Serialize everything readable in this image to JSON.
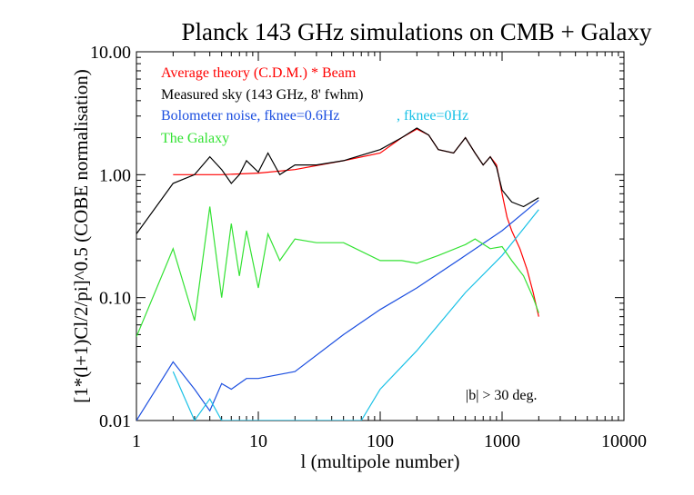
{
  "chart_data": {
    "type": "line",
    "title": "Planck 143 GHz simulations on CMB + Galaxy",
    "xlabel": "l (multipole number)",
    "ylabel": "[1*(l+1)Cl/2/pi]^0.5 (COBE normalisation)",
    "xscale": "log",
    "yscale": "log",
    "xlim": [
      1,
      10000
    ],
    "ylim": [
      0.01,
      10
    ],
    "x_ticks": [
      1,
      10,
      100,
      1000,
      10000
    ],
    "x_tick_labels": [
      "1",
      "10",
      "100",
      "1000",
      "10000"
    ],
    "y_ticks": [
      0.01,
      0.1,
      1,
      10
    ],
    "y_tick_labels": [
      "0.01",
      "0.10",
      "1.00",
      "10.00"
    ],
    "grid": false,
    "legend_position": "top-left",
    "annotation": "|b| > 30 deg.",
    "series": [
      {
        "name": "Average theory (C.D.M.) * Beam",
        "color": "#ff0000",
        "points": [
          [
            2,
            1.0
          ],
          [
            5,
            1.0
          ],
          [
            10,
            1.03
          ],
          [
            20,
            1.1
          ],
          [
            50,
            1.3
          ],
          [
            100,
            1.5
          ],
          [
            150,
            2.0
          ],
          [
            200,
            2.35
          ],
          [
            250,
            2.1
          ],
          [
            300,
            1.6
          ],
          [
            400,
            1.5
          ],
          [
            500,
            2.0
          ],
          [
            600,
            1.5
          ],
          [
            700,
            1.2
          ],
          [
            800,
            1.4
          ],
          [
            900,
            1.2
          ],
          [
            1000,
            0.7
          ],
          [
            1100,
            0.45
          ],
          [
            1200,
            0.35
          ],
          [
            1400,
            0.25
          ],
          [
            1600,
            0.17
          ],
          [
            1800,
            0.11
          ],
          [
            2000,
            0.07
          ]
        ]
      },
      {
        "name": "Measured sky (143 GHz, 8' fwhm)",
        "color": "#000000",
        "points": [
          [
            1,
            0.33
          ],
          [
            2,
            0.85
          ],
          [
            3,
            1.0
          ],
          [
            4,
            1.4
          ],
          [
            5,
            1.1
          ],
          [
            6,
            0.85
          ],
          [
            7,
            1.0
          ],
          [
            8,
            1.3
          ],
          [
            10,
            1.05
          ],
          [
            12,
            1.5
          ],
          [
            15,
            1.0
          ],
          [
            20,
            1.2
          ],
          [
            30,
            1.2
          ],
          [
            50,
            1.3
          ],
          [
            100,
            1.6
          ],
          [
            150,
            2.0
          ],
          [
            200,
            2.4
          ],
          [
            250,
            2.1
          ],
          [
            300,
            1.6
          ],
          [
            400,
            1.5
          ],
          [
            500,
            2.0
          ],
          [
            600,
            1.5
          ],
          [
            700,
            1.2
          ],
          [
            800,
            1.4
          ],
          [
            900,
            1.15
          ],
          [
            1000,
            0.75
          ],
          [
            1200,
            0.6
          ],
          [
            1500,
            0.55
          ],
          [
            2000,
            0.65
          ]
        ]
      },
      {
        "name": "Bolometer noise, fknee=0.6Hz",
        "color": "#1c4fe0",
        "points": [
          [
            1,
            0.01
          ],
          [
            2,
            0.03
          ],
          [
            3,
            0.018
          ],
          [
            4,
            0.012
          ],
          [
            5,
            0.02
          ],
          [
            6,
            0.018
          ],
          [
            8,
            0.022
          ],
          [
            10,
            0.022
          ],
          [
            20,
            0.025
          ],
          [
            50,
            0.05
          ],
          [
            100,
            0.08
          ],
          [
            200,
            0.12
          ],
          [
            500,
            0.22
          ],
          [
            1000,
            0.35
          ],
          [
            2000,
            0.62
          ]
        ]
      },
      {
        "name": ", fknee=0Hz",
        "color": "#19c1e6",
        "points": [
          [
            2,
            0.025
          ],
          [
            3,
            0.01
          ],
          [
            4,
            0.015
          ],
          [
            5,
            0.01
          ],
          [
            70,
            0.01
          ],
          [
            100,
            0.018
          ],
          [
            200,
            0.037
          ],
          [
            500,
            0.11
          ],
          [
            1000,
            0.22
          ],
          [
            2000,
            0.52
          ]
        ]
      },
      {
        "name": "The Galaxy",
        "color": "#33e233",
        "points": [
          [
            1,
            0.048
          ],
          [
            2,
            0.25
          ],
          [
            3,
            0.065
          ],
          [
            4,
            0.55
          ],
          [
            5,
            0.1
          ],
          [
            6,
            0.4
          ],
          [
            7,
            0.15
          ],
          [
            8,
            0.35
          ],
          [
            10,
            0.12
          ],
          [
            12,
            0.33
          ],
          [
            15,
            0.2
          ],
          [
            20,
            0.3
          ],
          [
            30,
            0.28
          ],
          [
            50,
            0.28
          ],
          [
            100,
            0.2
          ],
          [
            150,
            0.2
          ],
          [
            200,
            0.19
          ],
          [
            300,
            0.22
          ],
          [
            500,
            0.27
          ],
          [
            600,
            0.3
          ],
          [
            800,
            0.25
          ],
          [
            1000,
            0.26
          ],
          [
            1200,
            0.2
          ],
          [
            1500,
            0.15
          ],
          [
            1800,
            0.1
          ],
          [
            2000,
            0.075
          ]
        ]
      }
    ]
  }
}
